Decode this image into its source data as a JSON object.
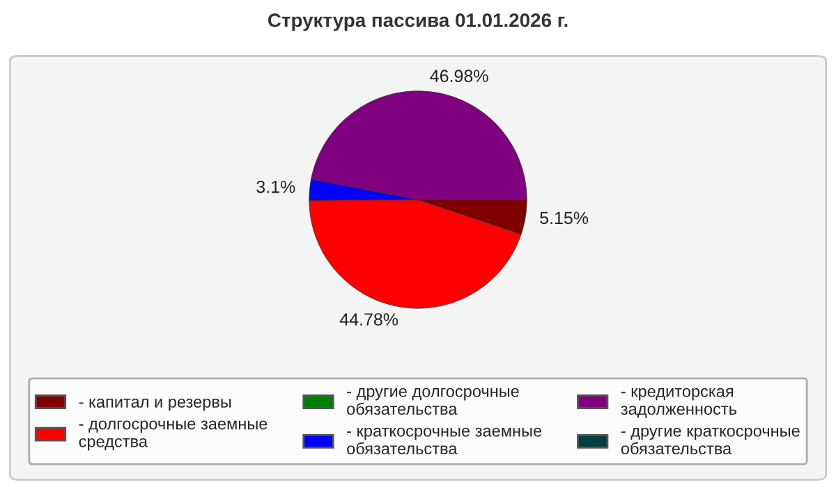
{
  "chart_data": {
    "type": "pie",
    "title": "Структура пассива 01.01.2026 г.",
    "categories": [
      "- капитал и резервы",
      "- долгосрочные заемные\nсредства",
      "- другие долгосрочные\nобязательства",
      "- краткосрочные заемные\nобязательства",
      "- кредиторская\nзадолженность",
      "- другие краткосрочные\nобязательства"
    ],
    "values": [
      5.15,
      44.78,
      0,
      3.1,
      46.98,
      0
    ],
    "value_labels": [
      "5.15%",
      "44.78%",
      null,
      "3.1%",
      "46.98%",
      null
    ],
    "colors": [
      "#800000",
      "#ff0000",
      "#008000",
      "#0000ff",
      "#800080",
      "#004040"
    ],
    "legend": "bottom"
  }
}
